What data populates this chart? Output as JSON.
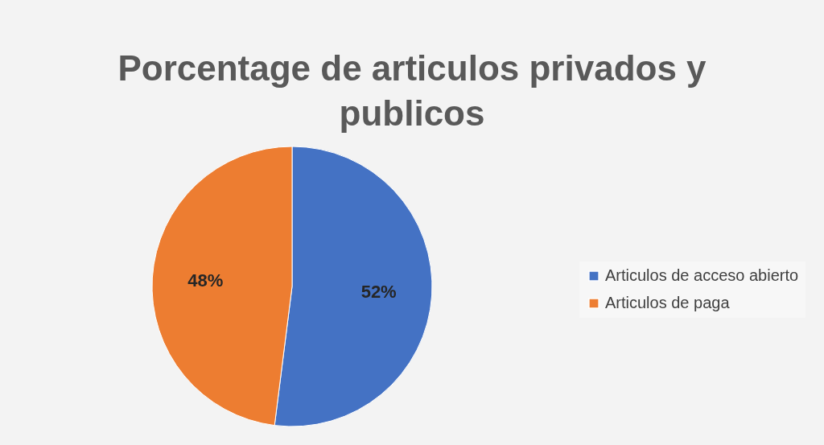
{
  "chart_data": {
    "type": "pie",
    "title": "Porcentage de articulos privados y publicos",
    "categories": [
      "Articulos de acceso abierto",
      "Articulos de paga"
    ],
    "values": [
      52,
      48
    ],
    "colors": [
      "#4472c4",
      "#ed7d31"
    ],
    "value_labels": [
      "52%",
      "48%"
    ],
    "legend": "right"
  }
}
